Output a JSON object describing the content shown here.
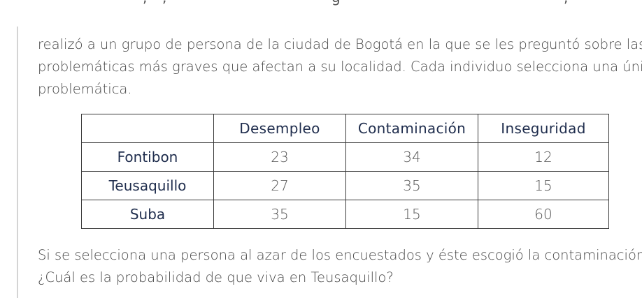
{
  "intro_lines": [
    "realizó a un grupo de persona de la ciudad de Bogotá en la que se les preguntó sobre las",
    "problemáticas más graves que afectan a su localidad. Cada individuo selecciona una única",
    "problemática."
  ],
  "table": {
    "headers": [
      "",
      "Desempleo",
      "Contaminación",
      "Inseguridad"
    ],
    "rows": [
      {
        "label": "Fontibon",
        "values": [
          "23",
          "34",
          "12"
        ]
      },
      {
        "label": "Teusaquillo",
        "values": [
          "27",
          "35",
          "15"
        ]
      },
      {
        "label": "Suba",
        "values": [
          "35",
          "15",
          "60"
        ]
      }
    ]
  },
  "question_lines": [
    "Si se selecciona una persona al azar de los encuestados y éste escogió la contaminación.",
    "¿Cuál es la probabilidad de que viva en Teusaquillo?"
  ]
}
